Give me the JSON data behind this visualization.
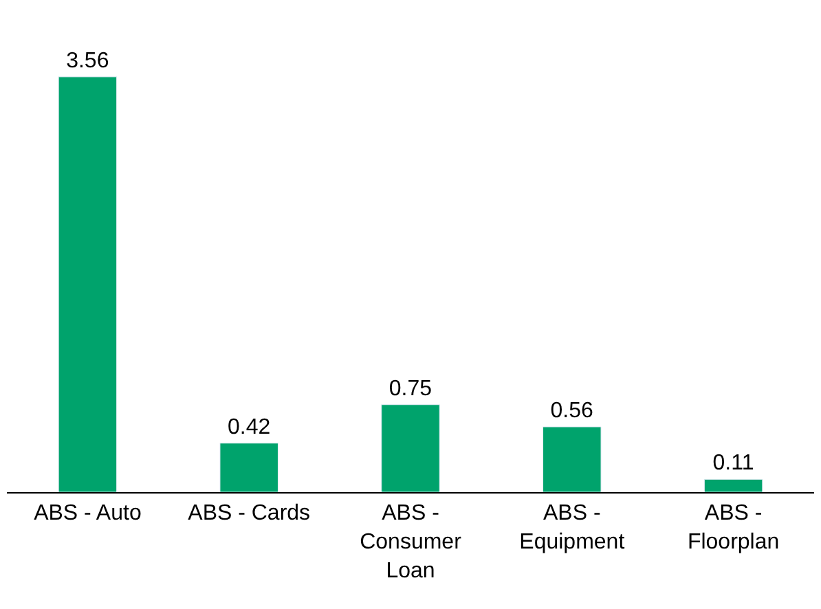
{
  "chart_data": {
    "type": "bar",
    "categories": [
      "ABS - Auto",
      "ABS - Cards",
      "ABS - Consumer Loan",
      "ABS - Equipment",
      "ABS - Floorplan"
    ],
    "values": [
      3.56,
      0.42,
      0.75,
      0.56,
      0.11
    ],
    "color": "#00a36c",
    "data_labels": true,
    "tick_labels": "x"
  }
}
